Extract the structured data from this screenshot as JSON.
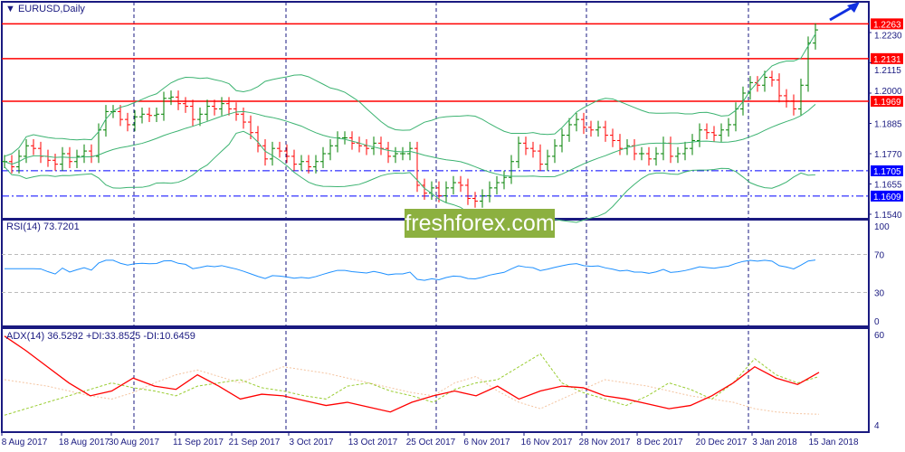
{
  "header": {
    "symbol_title": "EURUSD,Daily"
  },
  "colors": {
    "bull": "#008000",
    "bear": "#ff0000",
    "band": "#3cb371",
    "rsi": "#1e90ff",
    "adx": "#ff0000",
    "plus_di": "#9acd32",
    "minus_di": "#f4c4a0",
    "level_red": "#ff0000",
    "level_blue": "#0000ff",
    "axis": "#1a1a80"
  },
  "watermark": "freshforex.com",
  "price_axis": {
    "ticks": [
      "1.2230",
      "1.2115",
      "1.2000",
      "1.1885",
      "1.1770",
      "1.1655",
      "1.1540"
    ],
    "levels": [
      {
        "label": "1.2263",
        "value": 1.2263,
        "color": "red",
        "style": "solid"
      },
      {
        "label": "1.2131",
        "value": 1.2131,
        "color": "red",
        "style": "solid"
      },
      {
        "label": "1.1969",
        "value": 1.1969,
        "color": "red",
        "style": "solid"
      },
      {
        "label": "1.1705",
        "value": 1.1705,
        "color": "blue",
        "style": "dashdot"
      },
      {
        "label": "1.1609",
        "value": 1.1609,
        "color": "blue",
        "style": "dashdot"
      }
    ]
  },
  "rsi": {
    "title": "RSI(14) 73.7201",
    "ticks": [
      "100",
      "70",
      "30",
      "0"
    ]
  },
  "adx": {
    "title": "ADX(14) 36.5292 +DI:33.8525 -DI:10.6459",
    "ticks": [
      "60",
      "4"
    ],
    "adx": [
      59,
      50,
      40,
      30,
      22,
      25,
      33,
      28,
      26,
      35,
      28,
      20,
      23,
      22,
      19,
      16,
      18,
      15,
      12,
      18,
      22,
      25,
      22,
      28,
      20,
      25,
      28,
      27,
      22,
      20,
      17,
      14,
      16,
      22,
      30,
      40,
      33,
      29,
      36.5
    ],
    "plus_di": [
      10,
      14,
      18,
      22,
      26,
      30,
      27,
      25,
      22,
      28,
      30,
      32,
      27,
      25,
      22,
      20,
      28,
      30,
      25,
      22,
      18,
      26,
      30,
      32,
      40,
      48,
      30,
      24,
      20,
      16,
      22,
      30,
      26,
      20,
      30,
      45,
      35,
      30,
      33.9
    ],
    "minus_di": [
      32,
      30,
      28,
      25,
      22,
      20,
      24,
      30,
      35,
      38,
      34,
      30,
      35,
      40,
      38,
      36,
      33,
      30,
      27,
      24,
      22,
      30,
      34,
      25,
      18,
      14,
      20,
      26,
      32,
      30,
      28,
      25,
      22,
      20,
      18,
      14,
      12,
      11,
      10.6
    ]
  },
  "time_axis": [
    "8 Aug 2017",
    "18 Aug 2017",
    "30 Aug 2017",
    "11 Sep 2017",
    "21 Sep 2017",
    "3 Oct 2017",
    "13 Oct 2017",
    "25 Oct 2017",
    "6 Nov 2017",
    "16 Nov 2017",
    "28 Nov 2017",
    "8 Dec 2017",
    "20 Dec 2017",
    "3 Jan 2018",
    "15 Jan 2018"
  ],
  "closes": [
    1.174,
    1.172,
    1.176,
    1.18,
    1.179,
    1.176,
    1.1745,
    1.173,
    1.177,
    1.174,
    1.176,
    1.178,
    1.176,
    1.186,
    1.193,
    1.193,
    1.19,
    1.188,
    1.191,
    1.192,
    1.1915,
    1.192,
    1.198,
    1.1985,
    1.196,
    1.195,
    1.19,
    1.192,
    1.195,
    1.194,
    1.196,
    1.194,
    1.192,
    1.189,
    1.185,
    1.18,
    1.175,
    1.179,
    1.178,
    1.176,
    1.173,
    1.174,
    1.172,
    1.174,
    1.177,
    1.18,
    1.183,
    1.183,
    1.181,
    1.18,
    1.179,
    1.181,
    1.179,
    1.176,
    1.177,
    1.177,
    1.179,
    1.165,
    1.162,
    1.164,
    1.161,
    1.164,
    1.166,
    1.165,
    1.16,
    1.159,
    1.161,
    1.164,
    1.166,
    1.168,
    1.174,
    1.181,
    1.179,
    1.178,
    1.173,
    1.176,
    1.18,
    1.184,
    1.188,
    1.19,
    1.187,
    1.186,
    1.187,
    1.184,
    1.182,
    1.179,
    1.18,
    1.177,
    1.177,
    1.175,
    1.177,
    1.181,
    1.176,
    1.177,
    1.179,
    1.182,
    1.186,
    1.185,
    1.184,
    1.186,
    1.188,
    1.194,
    1.2,
    1.204,
    1.203,
    1.206,
    1.205,
    1.199,
    1.197,
    1.194,
    1.203,
    1.219,
    1.224
  ]
}
